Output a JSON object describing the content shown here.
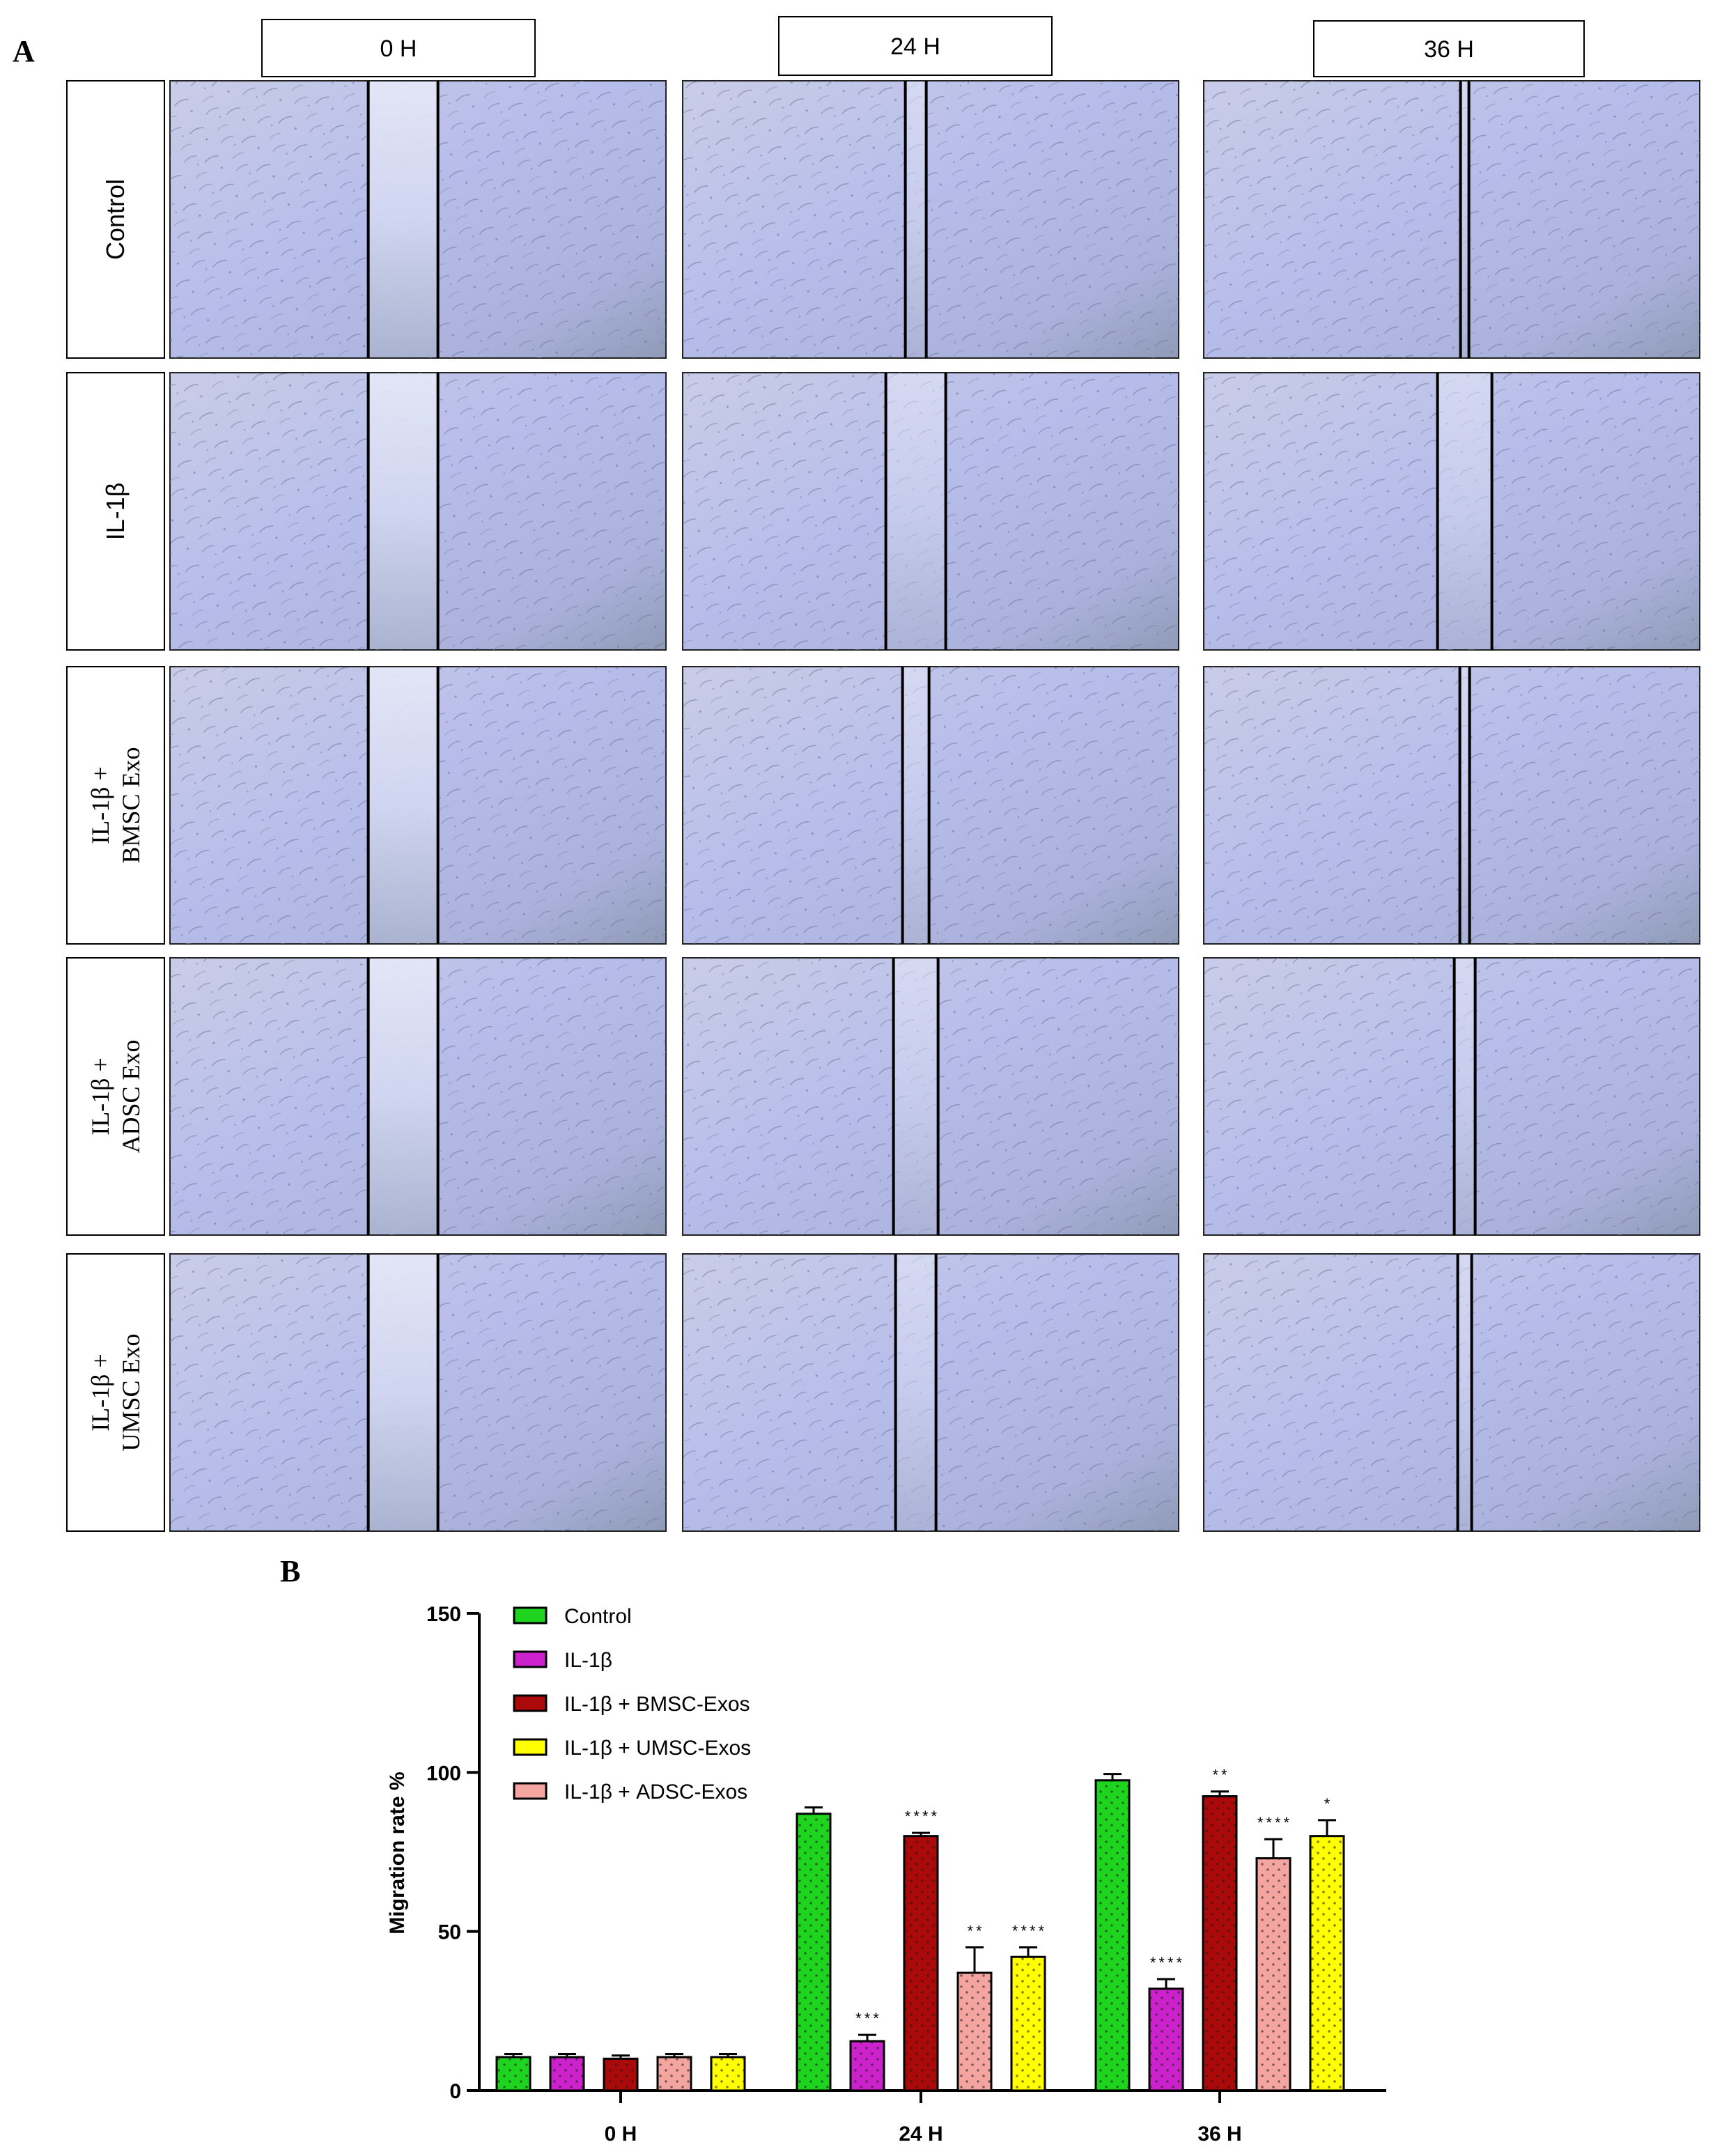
{
  "panel_a": {
    "label": "A",
    "time_points": [
      "0 H",
      "24 H",
      "36 H"
    ],
    "groups": [
      {
        "lines": [
          "Control"
        ],
        "serif": false,
        "scratch_gap": [
          1.0,
          0.3,
          0.12
        ]
      },
      {
        "lines": [
          "IL-1β"
        ],
        "serif": false,
        "scratch_gap": [
          1.0,
          0.86,
          0.78
        ]
      },
      {
        "lines": [
          "IL-1β +",
          "BMSC Exo"
        ],
        "serif": true,
        "scratch_gap": [
          1.0,
          0.38,
          0.14
        ]
      },
      {
        "lines": [
          "IL-1β +",
          "ADSC Exo"
        ],
        "serif": true,
        "scratch_gap": [
          1.0,
          0.64,
          0.3
        ]
      },
      {
        "lines": [
          "IL-1β +",
          "UMSC Exo"
        ],
        "serif": true,
        "scratch_gap": [
          1.0,
          0.58,
          0.2
        ]
      }
    ]
  },
  "panel_b": {
    "label": "B"
  },
  "chart_data": {
    "type": "bar",
    "categories": [
      "0 H",
      "24 H",
      "36 H"
    ],
    "ylabel": "Migration rate %",
    "xlabel": "",
    "ylim": [
      0,
      150
    ],
    "yticks": [
      0,
      50,
      100,
      150
    ],
    "legend_position": "top-left",
    "series": [
      {
        "name": "Control",
        "color": "#1fd41f",
        "values": [
          10.5,
          87,
          97.5
        ],
        "errors": [
          1,
          2,
          2
        ],
        "sig": [
          "",
          "",
          ""
        ]
      },
      {
        "name": "IL-1β",
        "color": "#cc22cc",
        "values": [
          10.5,
          15.5,
          32
        ],
        "errors": [
          1,
          2,
          3
        ],
        "sig": [
          "",
          "***",
          "****"
        ]
      },
      {
        "name": "IL-1β + BMSC-Exos",
        "color": "#aa0a0a",
        "values": [
          10,
          80,
          92.5
        ],
        "errors": [
          1,
          1,
          1.5
        ],
        "sig": [
          "",
          "****",
          "**"
        ]
      },
      {
        "name": "IL-1β + UMSC-Exos",
        "color": "#ffff00",
        "values": [
          10.5,
          42,
          80
        ],
        "errors": [
          1,
          3,
          5
        ],
        "sig": [
          "",
          "****",
          "*"
        ]
      },
      {
        "name": "IL-1β + ADSC-Exos",
        "color": "#f4a5a0",
        "values": [
          10.5,
          37,
          73
        ],
        "errors": [
          1,
          8,
          6
        ],
        "sig": [
          "",
          "**",
          "****"
        ]
      }
    ],
    "bar_order": [
      "Control",
      "IL-1β",
      "IL-1β + BMSC-Exos",
      "IL-1β + ADSC-Exos",
      "IL-1β + UMSC-Exos"
    ]
  }
}
